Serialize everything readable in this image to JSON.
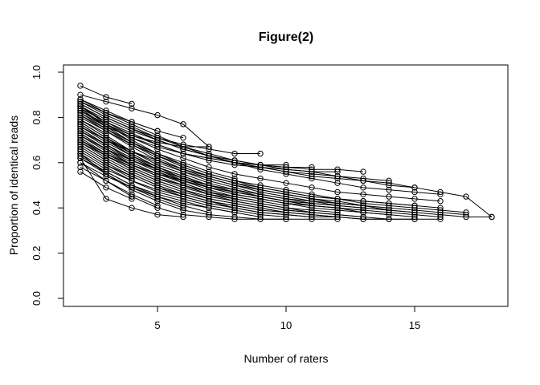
{
  "chart_data": {
    "type": "line",
    "title": "Figure(2)",
    "xlabel": "Number of raters",
    "ylabel": "Proportion of identical reads",
    "x_tick_values": [
      5,
      10,
      15
    ],
    "x_tick_labels": [
      "5",
      "10",
      "15"
    ],
    "y_tick_values": [
      0.0,
      0.2,
      0.4,
      0.6,
      0.8,
      1.0
    ],
    "y_tick_labels": [
      "0.0",
      "0.2",
      "0.4",
      "0.6",
      "0.8",
      "1.0"
    ],
    "xlim": [
      1.36,
      18.64
    ],
    "ylim": [
      -0.035,
      1.033
    ],
    "grid": false,
    "legend": "none",
    "marker": "open-circle",
    "marker_radius": 3.2,
    "series_color": "#000000",
    "background": "#ffffff",
    "x_start": 2,
    "series": [
      [
        0.94,
        0.89,
        0.86
      ],
      [
        0.9,
        0.87,
        0.84,
        0.81,
        0.77,
        0.67
      ],
      [
        0.7,
        0.64,
        0.59,
        0.55,
        0.52,
        0.49,
        0.47,
        0.45,
        0.43,
        0.42,
        0.41,
        0.4,
        0.39,
        0.38,
        0.37,
        0.36,
        0.36
      ],
      [
        0.85,
        0.77,
        0.7,
        0.64,
        0.59,
        0.55,
        0.52,
        0.49,
        0.47,
        0.45,
        0.44,
        0.42,
        0.41,
        0.4,
        0.39,
        0.38
      ],
      [
        0.78,
        0.71,
        0.65,
        0.6,
        0.56,
        0.53,
        0.5,
        0.48,
        0.46,
        0.44,
        0.43,
        0.41,
        0.4,
        0.39,
        0.38,
        0.37
      ],
      [
        0.88,
        0.82,
        0.77,
        0.72,
        0.67,
        0.64,
        0.61,
        0.59,
        0.57,
        0.56,
        0.54,
        0.52,
        0.5,
        0.49,
        0.47,
        0.45,
        0.36
      ],
      [
        0.86,
        0.8,
        0.75,
        0.7,
        0.66,
        0.63,
        0.6,
        0.57,
        0.55,
        0.53,
        0.51,
        0.49,
        0.48,
        0.47,
        0.46
      ],
      [
        0.8,
        0.74,
        0.68,
        0.63,
        0.59,
        0.55,
        0.52,
        0.5,
        0.48,
        0.46,
        0.44,
        0.43,
        0.42,
        0.41,
        0.4
      ],
      [
        0.74,
        0.67,
        0.61,
        0.56,
        0.52,
        0.49,
        0.46,
        0.44,
        0.42,
        0.41,
        0.4,
        0.39,
        0.38,
        0.37,
        0.36
      ],
      [
        0.68,
        0.61,
        0.55,
        0.5,
        0.46,
        0.43,
        0.4,
        0.38,
        0.37,
        0.36,
        0.36,
        0.35,
        0.35,
        0.35,
        0.35
      ],
      [
        0.84,
        0.76,
        0.69,
        0.63,
        0.58,
        0.54,
        0.51,
        0.48,
        0.46,
        0.44,
        0.42,
        0.41,
        0.39,
        0.38
      ],
      [
        0.77,
        0.7,
        0.64,
        0.58,
        0.54,
        0.5,
        0.47,
        0.45,
        0.43,
        0.41,
        0.4,
        0.38,
        0.37,
        0.36
      ],
      [
        0.71,
        0.64,
        0.58,
        0.53,
        0.49,
        0.46,
        0.43,
        0.41,
        0.39,
        0.38,
        0.37,
        0.36,
        0.35,
        0.35
      ],
      [
        0.87,
        0.81,
        0.76,
        0.71,
        0.67,
        0.63,
        0.6,
        0.58,
        0.56,
        0.54,
        0.53,
        0.52,
        0.51,
        0.49
      ],
      [
        0.82,
        0.75,
        0.68,
        0.62,
        0.57,
        0.53,
        0.5,
        0.47,
        0.45,
        0.43,
        0.41,
        0.4,
        0.39
      ],
      [
        0.75,
        0.68,
        0.62,
        0.57,
        0.53,
        0.49,
        0.46,
        0.44,
        0.42,
        0.4,
        0.39,
        0.38,
        0.37
      ],
      [
        0.69,
        0.62,
        0.56,
        0.51,
        0.47,
        0.44,
        0.42,
        0.4,
        0.38,
        0.37,
        0.36,
        0.35,
        0.35
      ],
      [
        0.86,
        0.8,
        0.75,
        0.7,
        0.66,
        0.63,
        0.6,
        0.58,
        0.56,
        0.55,
        0.54,
        0.53,
        0.52
      ],
      [
        0.83,
        0.76,
        0.69,
        0.63,
        0.58,
        0.54,
        0.51,
        0.48,
        0.46,
        0.44,
        0.42,
        0.41
      ],
      [
        0.76,
        0.69,
        0.63,
        0.58,
        0.54,
        0.5,
        0.47,
        0.45,
        0.43,
        0.41,
        0.4,
        0.39
      ],
      [
        0.7,
        0.63,
        0.57,
        0.52,
        0.48,
        0.45,
        0.43,
        0.41,
        0.39,
        0.38,
        0.37,
        0.36
      ],
      [
        0.85,
        0.79,
        0.74,
        0.7,
        0.66,
        0.63,
        0.61,
        0.59,
        0.58,
        0.57,
        0.57,
        0.56
      ],
      [
        0.81,
        0.74,
        0.67,
        0.61,
        0.56,
        0.52,
        0.49,
        0.46,
        0.44,
        0.42,
        0.41
      ],
      [
        0.73,
        0.66,
        0.6,
        0.55,
        0.51,
        0.47,
        0.44,
        0.42,
        0.4,
        0.39,
        0.38
      ],
      [
        0.66,
        0.59,
        0.54,
        0.49,
        0.46,
        0.43,
        0.41,
        0.39,
        0.38,
        0.37,
        0.36
      ],
      [
        0.84,
        0.78,
        0.73,
        0.68,
        0.64,
        0.61,
        0.59,
        0.58,
        0.57,
        0.56,
        0.56
      ],
      [
        0.79,
        0.72,
        0.65,
        0.59,
        0.55,
        0.51,
        0.48,
        0.45,
        0.43,
        0.41
      ],
      [
        0.72,
        0.65,
        0.59,
        0.54,
        0.5,
        0.46,
        0.44,
        0.42,
        0.4,
        0.38
      ],
      [
        0.65,
        0.58,
        0.52,
        0.48,
        0.45,
        0.42,
        0.4,
        0.38,
        0.37,
        0.36
      ],
      [
        0.83,
        0.77,
        0.72,
        0.68,
        0.64,
        0.62,
        0.6,
        0.59,
        0.58,
        0.58
      ],
      [
        0.78,
        0.71,
        0.64,
        0.58,
        0.53,
        0.49,
        0.46,
        0.44,
        0.42
      ],
      [
        0.7,
        0.63,
        0.57,
        0.52,
        0.48,
        0.44,
        0.42,
        0.4,
        0.38
      ],
      [
        0.64,
        0.57,
        0.52,
        0.47,
        0.44,
        0.41,
        0.39,
        0.37,
        0.36
      ],
      [
        0.82,
        0.76,
        0.71,
        0.67,
        0.64,
        0.62,
        0.6,
        0.59,
        0.59
      ],
      [
        0.77,
        0.7,
        0.63,
        0.57,
        0.52,
        0.48,
        0.45,
        0.43
      ],
      [
        0.68,
        0.61,
        0.55,
        0.5,
        0.46,
        0.43,
        0.41,
        0.39
      ],
      [
        0.86,
        0.8,
        0.75,
        0.71,
        0.68,
        0.66,
        0.64,
        0.64
      ],
      [
        0.6,
        0.54,
        0.49,
        0.45,
        0.42,
        0.4,
        0.38,
        0.36
      ],
      [
        0.75,
        0.68,
        0.61,
        0.56,
        0.51,
        0.47,
        0.44
      ],
      [
        0.67,
        0.6,
        0.54,
        0.49,
        0.45,
        0.42,
        0.4
      ],
      [
        0.62,
        0.56,
        0.5,
        0.46,
        0.43,
        0.4,
        0.38
      ],
      [
        0.85,
        0.78,
        0.72,
        0.69,
        0.67,
        0.67
      ],
      [
        0.73,
        0.66,
        0.59,
        0.54,
        0.5,
        0.46
      ],
      [
        0.63,
        0.56,
        0.5,
        0.45,
        0.41,
        0.38
      ],
      [
        0.88,
        0.83,
        0.78,
        0.74
      ],
      [
        0.58,
        0.52,
        0.46,
        0.41
      ],
      [
        0.56,
        0.49,
        0.44
      ],
      [
        0.62,
        0.55,
        0.49,
        0.44,
        0.4
      ],
      [
        0.87,
        0.82,
        0.78,
        0.74,
        0.71
      ],
      [
        0.79,
        0.73
      ],
      [
        0.66,
        0.59,
        0.53
      ],
      [
        0.81,
        0.75,
        0.69,
        0.64,
        0.6,
        0.56,
        0.53
      ],
      [
        0.74,
        0.68,
        0.62,
        0.57,
        0.53,
        0.5,
        0.47,
        0.45
      ],
      [
        0.69,
        0.63,
        0.58,
        0.53,
        0.5,
        0.47,
        0.45,
        0.43,
        0.41
      ],
      [
        0.72,
        0.66,
        0.61,
        0.57,
        0.53,
        0.5,
        0.48,
        0.46,
        0.44,
        0.43,
        0.42,
        0.41
      ],
      [
        0.76,
        0.7,
        0.65,
        0.61,
        0.57,
        0.54,
        0.51,
        0.49,
        0.47,
        0.45,
        0.44,
        0.43,
        0.42,
        0.41
      ],
      [
        0.83,
        0.77,
        0.71,
        0.66,
        0.62,
        0.58,
        0.55,
        0.53,
        0.51,
        0.49,
        0.47,
        0.46,
        0.45,
        0.44,
        0.43
      ],
      [
        0.64,
        0.55,
        0.48,
        0.43,
        0.39,
        0.37,
        0.36,
        0.35,
        0.35,
        0.35,
        0.35
      ],
      [
        0.6,
        0.52,
        0.45,
        0.4,
        0.37,
        0.36,
        0.35,
        0.35,
        0.35
      ],
      [
        0.62,
        0.44,
        0.4,
        0.37,
        0.36
      ]
    ]
  }
}
